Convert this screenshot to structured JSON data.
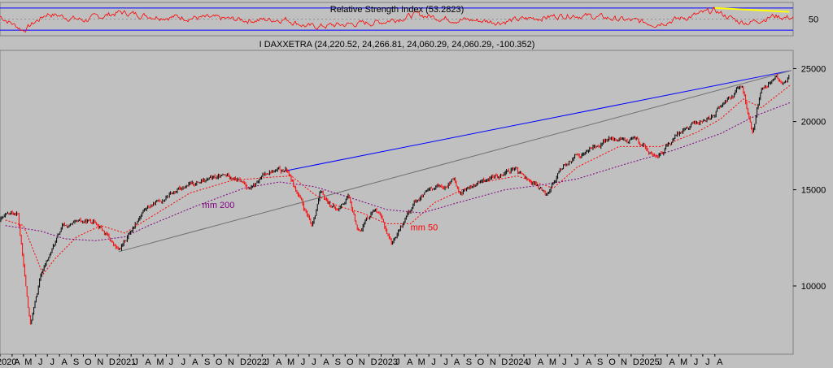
{
  "chart_data": [
    {
      "type": "line",
      "title": "Relative Strength Index (53.2823)",
      "ylim": [
        20,
        80
      ],
      "y_ticks": [
        50
      ],
      "reference_levels": [
        70,
        30
      ],
      "colors": {
        "rsi": "#ff0000",
        "levels": "#0000ff",
        "trend": "#ffff00"
      },
      "trendline": {
        "x": [
          "2025-01-01",
          "2025-07-10"
        ],
        "y": [
          70,
          63
        ]
      },
      "series": [
        {
          "name": "RSI",
          "x": [
            "2020-01",
            "2020-03",
            "2020-05",
            "2020-08",
            "2020-11",
            "2021-02",
            "2021-06",
            "2021-10",
            "2022-01",
            "2022-03",
            "2022-06",
            "2022-09",
            "2022-12",
            "2023-03",
            "2023-07",
            "2023-10",
            "2024-01",
            "2024-04",
            "2024-08",
            "2024-11",
            "2025-01",
            "2025-03",
            "2025-04",
            "2025-06",
            "2025-07"
          ],
          "values": [
            55,
            30,
            60,
            48,
            62,
            55,
            52,
            48,
            50,
            36,
            40,
            45,
            58,
            50,
            45,
            52,
            58,
            52,
            42,
            55,
            65,
            46,
            44,
            56,
            53
          ]
        }
      ]
    },
    {
      "type": "line",
      "title": "I DAXXETRA (24,220.52, 24,266.81, 24,060.29, 24,060.29, -100.352)",
      "y_scale": "log",
      "ylim": [
        7500,
        27000
      ],
      "y_ticks": [
        10000,
        15000,
        20000,
        25000
      ],
      "x_range": [
        "2020-01-01",
        "2025-07-20"
      ],
      "x_tick_labels": [
        "2020",
        "A",
        "M",
        "J",
        "J",
        "A",
        "S",
        "O",
        "N",
        "D",
        "2021",
        "J",
        "A",
        "M",
        "J",
        "J",
        "A",
        "S",
        "O",
        "N",
        "D",
        "2022",
        "J",
        "A",
        "M",
        "J",
        "J",
        "A",
        "S",
        "O",
        "N",
        "D",
        "2023",
        "J",
        "A",
        "M",
        "J",
        "J",
        "A",
        "S",
        "O",
        "N",
        "D",
        "2024",
        "J",
        "A",
        "M",
        "J",
        "J",
        "A",
        "S",
        "O",
        "N",
        "D",
        "2025",
        "J",
        "A",
        "M",
        "J",
        "J",
        "A"
      ],
      "colors": {
        "price": "#000000",
        "price_down": "#ff0000",
        "mm50": "#ff0000",
        "mm200": "#800080",
        "trend_upper": "#0000ff",
        "trend_lower": "#707070"
      },
      "annotations": [
        {
          "text": "mm 200",
          "color": "#800080",
          "x": "2021-06-01",
          "y": 13900
        },
        {
          "text": "mm 50",
          "color": "#ff0000",
          "x": "2022-11-15",
          "y": 12650
        }
      ],
      "trendlines": [
        {
          "name": "upper",
          "x": [
            "2021-12-31",
            "2025-07-15"
          ],
          "y": [
            16250,
            24800
          ]
        },
        {
          "name": "lower",
          "x": [
            "2020-10-30",
            "2025-07-15"
          ],
          "y": [
            11550,
            24800
          ]
        }
      ],
      "series": [
        {
          "name": "DAX",
          "x": [
            "2020-01-02",
            "2020-02-15",
            "2020-03-18",
            "2020-04-15",
            "2020-06-08",
            "2020-09-02",
            "2020-10-30",
            "2020-12-30",
            "2021-04-15",
            "2021-08-13",
            "2021-10-06",
            "2021-11-17",
            "2022-01-05",
            "2022-03-07",
            "2022-03-29",
            "2022-05-12",
            "2022-06-08",
            "2022-07-05",
            "2022-08-15",
            "2022-09-29",
            "2022-11-30",
            "2023-03-06",
            "2023-03-20",
            "2023-07-31",
            "2023-10-27",
            "2023-12-14",
            "2024-03-28",
            "2024-06-13",
            "2024-08-05",
            "2024-10-15",
            "2024-12-18",
            "2025-03-11",
            "2025-04-07",
            "2025-04-30",
            "2025-06-05",
            "2025-06-20",
            "2025-07-10"
          ],
          "values": [
            13200,
            13700,
            8450,
            10500,
            12800,
            13200,
            11550,
            13720,
            15250,
            15950,
            15050,
            16250,
            16250,
            12830,
            14800,
            13700,
            14600,
            12600,
            13950,
            11980,
            14400,
            15650,
            14800,
            16450,
            14800,
            16750,
            18500,
            18500,
            17100,
            19500,
            20400,
            23200,
            19000,
            23000,
            24250,
            23300,
            24200
          ]
        },
        {
          "name": "mm 50",
          "x": [
            "2020-01-15",
            "2020-03-01",
            "2020-04-20",
            "2020-05-20",
            "2020-07-15",
            "2020-09-15",
            "2020-11-15",
            "2021-01-15",
            "2021-05-01",
            "2021-08-15",
            "2021-11-15",
            "2022-01-15",
            "2022-03-15",
            "2022-05-15",
            "2022-07-15",
            "2022-09-15",
            "2022-11-15",
            "2023-01-15",
            "2023-05-01",
            "2023-08-15",
            "2023-11-15",
            "2024-01-15",
            "2024-05-01",
            "2024-08-15",
            "2024-11-15",
            "2025-01-15",
            "2025-03-15",
            "2025-04-30",
            "2025-06-15",
            "2025-07-15"
          ],
          "values": [
            13200,
            12900,
            10500,
            11200,
            12300,
            12900,
            12500,
            13300,
            14800,
            15600,
            15800,
            15900,
            14700,
            14000,
            13600,
            13000,
            13000,
            14200,
            15400,
            15900,
            15100,
            16500,
            18000,
            18000,
            19100,
            20200,
            22000,
            21200,
            22500,
            23400
          ]
        },
        {
          "name": "mm 200",
          "x": [
            "2020-01-15",
            "2020-04-15",
            "2020-06-15",
            "2020-09-01",
            "2020-11-15",
            "2021-01-15",
            "2021-05-15",
            "2021-09-15",
            "2021-12-15",
            "2022-03-15",
            "2022-06-15",
            "2022-09-15",
            "2022-12-15",
            "2023-03-15",
            "2023-07-15",
            "2023-10-15",
            "2024-01-15",
            "2024-05-15",
            "2024-09-15",
            "2025-01-15",
            "2025-04-15",
            "2025-07-15"
          ],
          "values": [
            12900,
            12600,
            12200,
            12100,
            12300,
            12900,
            14000,
            15100,
            15500,
            15200,
            14500,
            13800,
            13600,
            14200,
            15000,
            15300,
            15700,
            16700,
            17700,
            19000,
            20500,
            21700
          ]
        }
      ]
    }
  ]
}
